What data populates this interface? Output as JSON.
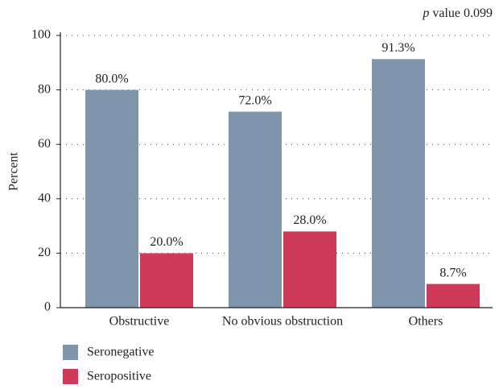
{
  "chart_data": {
    "type": "bar",
    "annotation": "p value 0.099",
    "ylabel": "Percent",
    "categories": [
      "Obstructive",
      "No obvious obstruction",
      "Others"
    ],
    "series": [
      {
        "name": "Seronegative",
        "color": "#7f95ab",
        "values": [
          80.0,
          72.0,
          91.3
        ],
        "value_labels": [
          "80.0%",
          "72.0%",
          "91.3%"
        ]
      },
      {
        "name": "Seropositive",
        "color": "#cf3a5a",
        "values": [
          20.0,
          28.0,
          8.7
        ],
        "value_labels": [
          "20.0%",
          "28.0%",
          "8.7%"
        ]
      }
    ],
    "ylim": [
      0,
      100
    ],
    "yticks": [
      0,
      20,
      40,
      60,
      80,
      100
    ],
    "grid": true
  }
}
